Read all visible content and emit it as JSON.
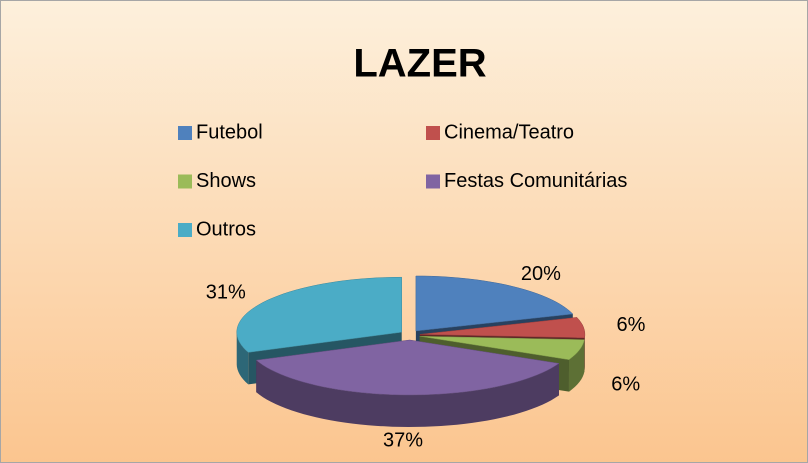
{
  "chart_data": {
    "type": "pie3d",
    "title": "LAZER",
    "categories": [
      "Futebol",
      "Cinema/Teatro",
      "Shows",
      "Festas Comunitárias",
      "Outros"
    ],
    "values": [
      20,
      6,
      6,
      37,
      31
    ],
    "value_labels": [
      "20%",
      "6%",
      "6%",
      "37%",
      "31%"
    ],
    "colors": [
      "#4f81bd",
      "#c0504d",
      "#9bbb59",
      "#8064a2",
      "#4bacc6"
    ]
  }
}
